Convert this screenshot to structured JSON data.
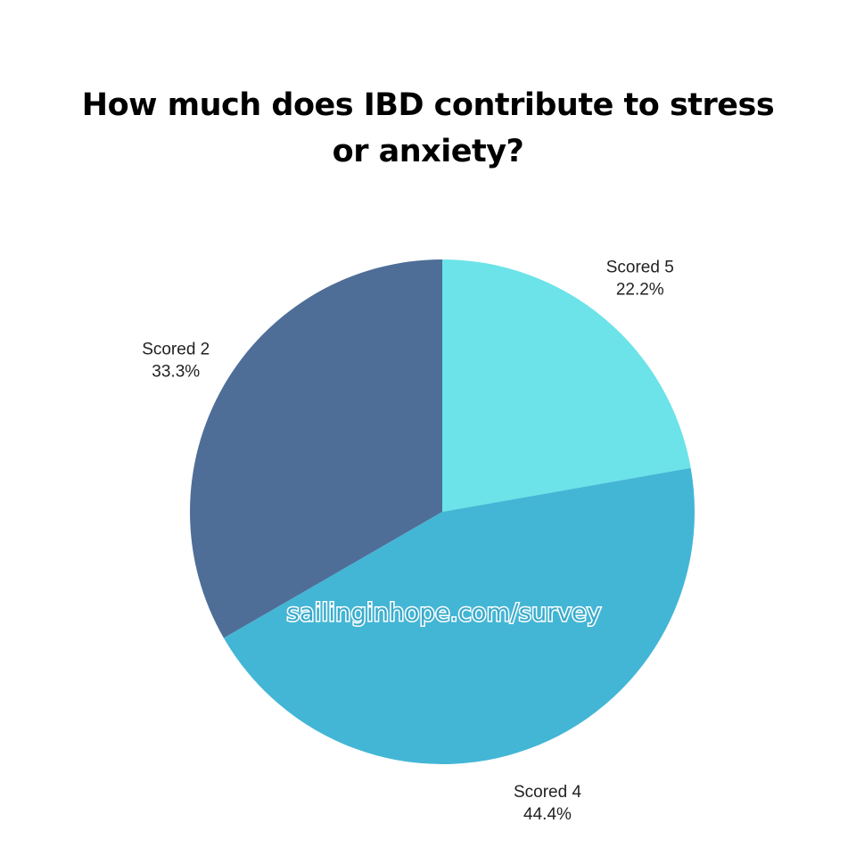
{
  "chart_data": {
    "type": "pie",
    "title": "How much does IBD contribute to stress or anxiety?",
    "slices": [
      {
        "label": "Scored 5",
        "value": 22.2,
        "value_label": "22.2%",
        "color": "#6be3e8"
      },
      {
        "label": "Scored 4",
        "value": 44.4,
        "value_label": "44.4%",
        "color": "#43b6d6"
      },
      {
        "label": "Scored 2",
        "value": 33.3,
        "value_label": "33.3%",
        "color": "#4e6e98"
      }
    ],
    "start_angle_deg": 0,
    "direction": "clockwise"
  },
  "watermark": "sailinginhope.com/survey",
  "colors": {
    "background": "#ffffff",
    "title": "#000000",
    "labels": "#222222",
    "watermark_fill": "#3aa9c9"
  }
}
